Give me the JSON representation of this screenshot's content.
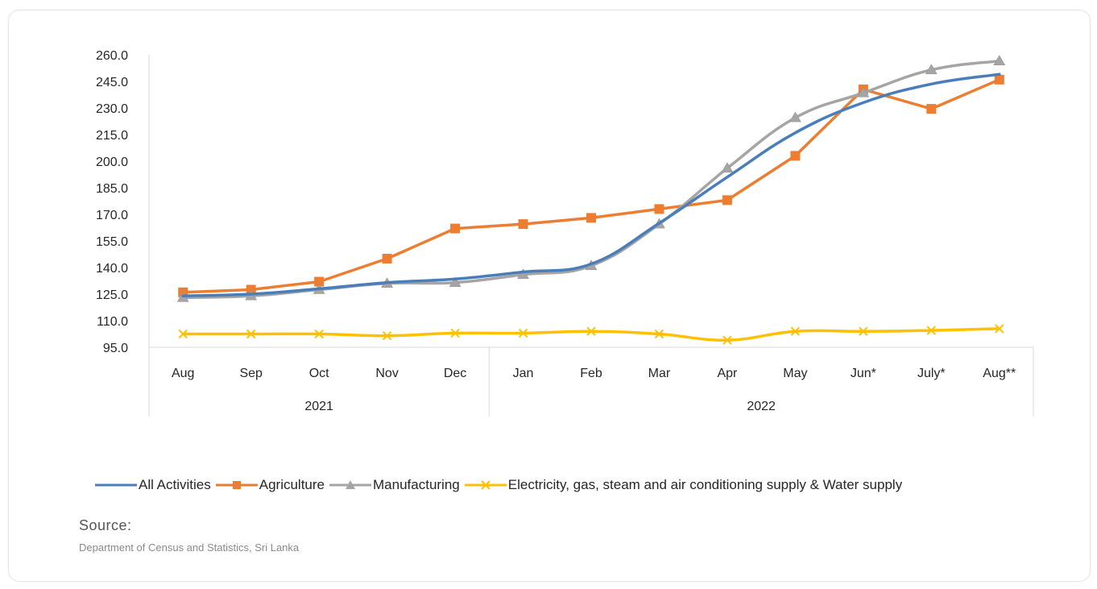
{
  "chart_data": {
    "type": "line",
    "categories": [
      "Aug",
      "Sep",
      "Oct",
      "Nov",
      "Dec",
      "Jan",
      "Feb",
      "Mar",
      "Apr",
      "May",
      "Jun*",
      "July*",
      "Aug**"
    ],
    "year_groups": [
      {
        "label": "2021",
        "count": 5
      },
      {
        "label": "2022",
        "count": 8
      }
    ],
    "y_ticks": [
      "260.0",
      "245.0",
      "230.0",
      "215.0",
      "200.0",
      "185.0",
      "170.0",
      "155.0",
      "140.0",
      "125.0",
      "110.0",
      "95.0"
    ],
    "ylim": [
      95,
      260
    ],
    "series": [
      {
        "name": "All Activities",
        "color": "#4a7ebb",
        "marker": "none",
        "values": [
          124.0,
          125.0,
          128.0,
          131.5,
          133.5,
          137.5,
          142.0,
          165.0,
          191.0,
          216.0,
          233.0,
          243.5,
          249.0
        ]
      },
      {
        "name": "Agriculture",
        "color": "#ed7d31",
        "marker": "square",
        "values": [
          126.0,
          127.5,
          132.0,
          145.0,
          162.0,
          164.5,
          168.0,
          173.0,
          178.0,
          203.0,
          240.5,
          229.5,
          246.0
        ]
      },
      {
        "name": "Manufacturing",
        "color": "#a5a5a5",
        "marker": "triangle",
        "values": [
          123.0,
          124.0,
          127.5,
          131.0,
          131.5,
          136.0,
          141.0,
          164.5,
          196.0,
          224.5,
          238.5,
          251.5,
          256.5
        ]
      },
      {
        "name": "Electricity, gas, steam and air conditioning supply & Water supply",
        "color": "#ffc000",
        "marker": "x",
        "values": [
          102.5,
          102.5,
          102.5,
          101.5,
          103.0,
          103.0,
          104.0,
          102.5,
          99.0,
          104.0,
          104.0,
          104.5,
          105.5
        ]
      }
    ]
  },
  "source": {
    "title": "Source:",
    "text": "Department of Census and Statistics, Sri Lanka"
  }
}
